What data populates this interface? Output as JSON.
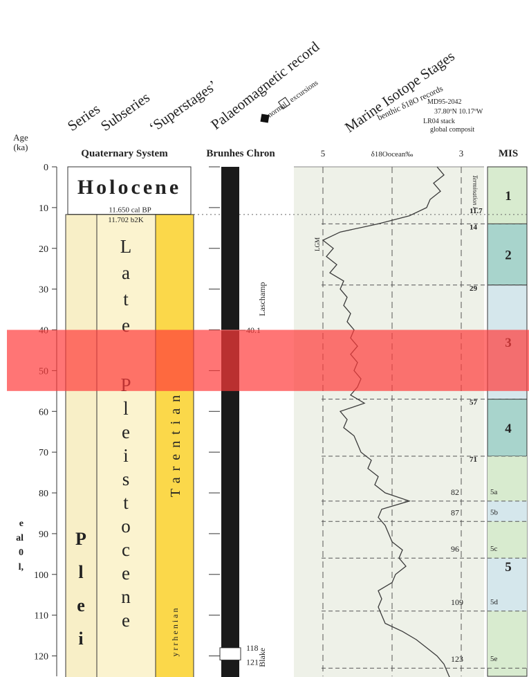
{
  "chart_data": {
    "type": "stratigraphy",
    "y_axis_title": [
      "Age",
      "(ka)"
    ],
    "ylim": [
      0,
      125
    ],
    "yticks": [
      0,
      10,
      20,
      30,
      40,
      50,
      60,
      70,
      80,
      90,
      100,
      110,
      120
    ],
    "headers": {
      "series": "Series",
      "subseries": "Subseries",
      "superstages": "‘Superstages’",
      "palaeomagnetic": "Palaeomagnetic record",
      "normal": "normal",
      "excursions": "excursions",
      "mis": "Marine Isotope Stages",
      "benthic": "benthic δ18O records",
      "core": "MD95-2042",
      "coords": "37.80ºN 10.17ºW",
      "stack": "LR04 stack",
      "global": "global composit"
    },
    "column_titles": {
      "system": "Quaternary System",
      "chron": "Brunhes Chron",
      "mis": "MIS"
    },
    "holocene": {
      "label": "Holocene",
      "base": 11.65,
      "base_label": "11.650 cal BP"
    },
    "pleistocene_top": 11.702,
    "pleistocene_top_label": "11.702 b2K",
    "series_letters": [
      "P",
      "l",
      "e",
      "i"
    ],
    "subseries_letters": [
      "L",
      "a",
      "t",
      "e",
      "P",
      "l",
      "e",
      "i",
      "s",
      "t",
      "o",
      "c",
      "e",
      "n",
      "e"
    ],
    "superstages": [
      "Tarentian",
      "yrrhenian"
    ],
    "excursions": [
      {
        "name": "Laschamp",
        "ages": [
          40.1
        ]
      },
      {
        "name": "Blake",
        "ages": [
          118,
          121
        ]
      }
    ],
    "isotope": {
      "xlim": [
        5.42,
        2.67
      ],
      "xticks": [
        5,
        {
          "value": 4,
          "label": "δ18Oocean‰"
        },
        3
      ],
      "color": "#3a3a3a",
      "x": [
        0,
        2,
        4,
        6,
        8,
        10,
        12,
        14,
        16,
        18,
        20,
        22,
        24,
        26,
        28,
        30,
        32,
        34,
        36,
        38,
        40,
        42,
        44,
        46,
        48,
        50,
        52,
        54,
        56,
        58,
        60,
        62,
        64,
        66,
        68,
        70,
        72,
        74,
        76,
        78,
        80,
        82,
        84,
        86,
        88,
        90,
        92,
        94,
        96,
        98,
        100,
        102,
        104,
        106,
        108,
        110,
        112,
        114,
        116,
        118,
        120,
        122,
        124,
        126
      ],
      "values": [
        3.35,
        3.25,
        3.4,
        3.3,
        3.45,
        3.5,
        3.75,
        4.2,
        4.75,
        5.0,
        4.85,
        4.95,
        4.8,
        4.9,
        4.7,
        4.75,
        4.65,
        4.7,
        4.6,
        4.65,
        4.55,
        4.6,
        4.5,
        4.6,
        4.5,
        4.55,
        4.45,
        4.5,
        4.6,
        4.4,
        4.75,
        4.65,
        4.7,
        4.55,
        4.5,
        4.45,
        4.3,
        4.35,
        4.2,
        4.25,
        4.1,
        3.75,
        4.15,
        4.2,
        4.1,
        4.05,
        4.0,
        3.85,
        3.9,
        3.8,
        3.95,
        4.0,
        4.2,
        4.15,
        4.2,
        4.15,
        4.1,
        3.85,
        3.65,
        3.5,
        3.35,
        3.25,
        3.2,
        3.15
      ],
      "annotations": [
        "LGM",
        "Termination I"
      ]
    },
    "mis_boundaries": [
      11.7,
      14,
      29,
      57,
      71,
      82,
      87,
      96,
      109,
      123
    ],
    "stages": [
      {
        "label": "1",
        "top": 0,
        "base": 14,
        "color": "#d8ebcf"
      },
      {
        "label": "2",
        "top": 14,
        "base": 29,
        "color": "#a8d4cc"
      },
      {
        "label": "3",
        "top": 29,
        "base": 57,
        "color": "#d5e7ec"
      },
      {
        "label": "4",
        "top": 57,
        "base": 71,
        "color": "#a8d4cc"
      },
      {
        "label": "5",
        "top": 71,
        "base": 125,
        "color": "#d8ebcf"
      }
    ],
    "substages": [
      {
        "label": "5a",
        "top": 71,
        "base": 82,
        "color": "#d8ebcf"
      },
      {
        "label": "5b",
        "top": 82,
        "base": 87,
        "color": "#d5e7ec"
      },
      {
        "label": "5c",
        "top": 87,
        "base": 96,
        "color": "#d8ebcf"
      },
      {
        "label": "5d",
        "top": 96,
        "base": 109,
        "color": "#d5e7ec"
      },
      {
        "label": "5e",
        "top": 109,
        "base": 123,
        "color": "#d8ebcf"
      }
    ],
    "highlight": {
      "from": 40,
      "to": 55,
      "color": "#ff3b3b"
    },
    "side_notes": [
      "e",
      "al",
      "0",
      "l,"
    ]
  }
}
